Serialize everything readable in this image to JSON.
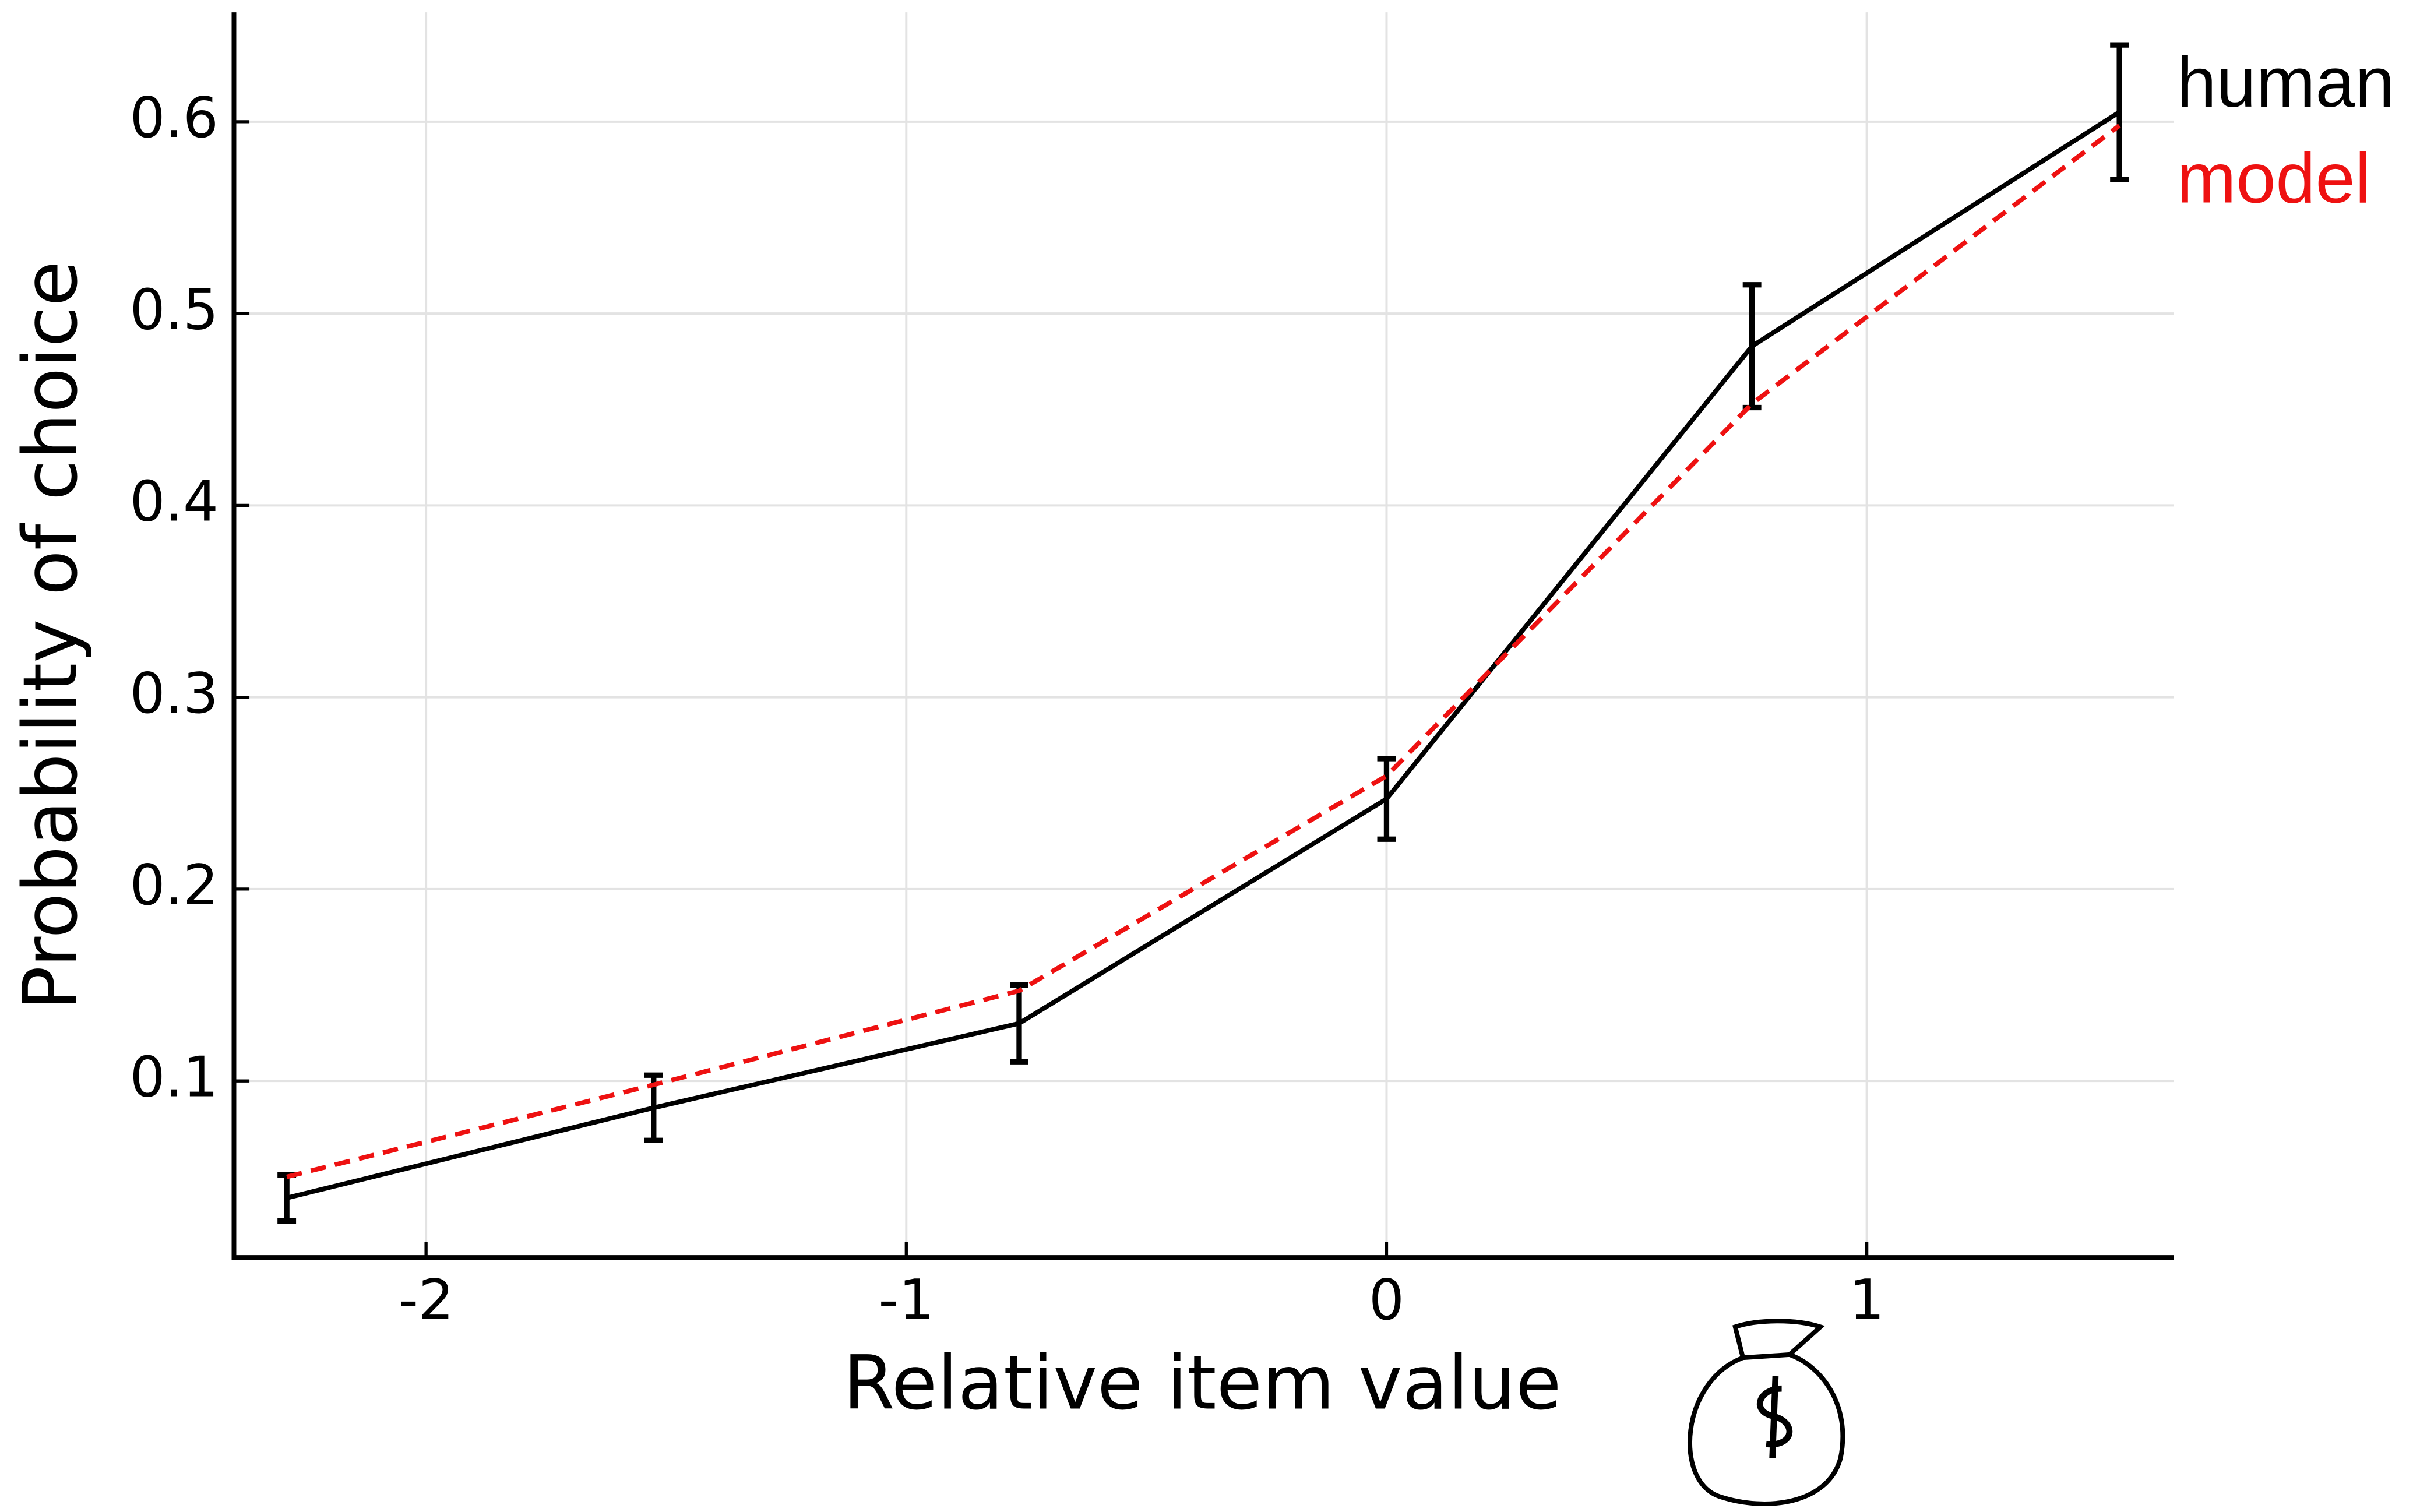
{
  "chart_data": {
    "type": "line",
    "x_label": "Relative item value",
    "y_label": "Probability of choice",
    "xlim": [
      -2.4,
      1.639
    ],
    "ylim": [
      0.008,
      0.657
    ],
    "xticks": [
      -2,
      -1,
      0,
      1
    ],
    "yticks": [
      0.1,
      0.2,
      0.3,
      0.4,
      0.5,
      0.6
    ],
    "grid": true,
    "legend": "right",
    "series": [
      {
        "name": "human",
        "color": "#000000",
        "dash": false,
        "x": [
          -2.29,
          -1.526,
          -0.765,
          0,
          0.761,
          1.526
        ],
        "values": [
          0.039,
          0.086,
          0.13,
          0.247,
          0.483,
          0.605
        ],
        "errors": [
          0.012,
          0.017,
          0.02,
          0.021,
          0.032,
          0.035
        ]
      },
      {
        "name": "model",
        "color": "#ee1111",
        "dash": true,
        "x": [
          -2.29,
          -1.526,
          -0.765,
          0,
          0.761,
          1.526
        ],
        "values": [
          0.05,
          0.098,
          0.147,
          0.259,
          0.453,
          0.598
        ]
      }
    ]
  }
}
